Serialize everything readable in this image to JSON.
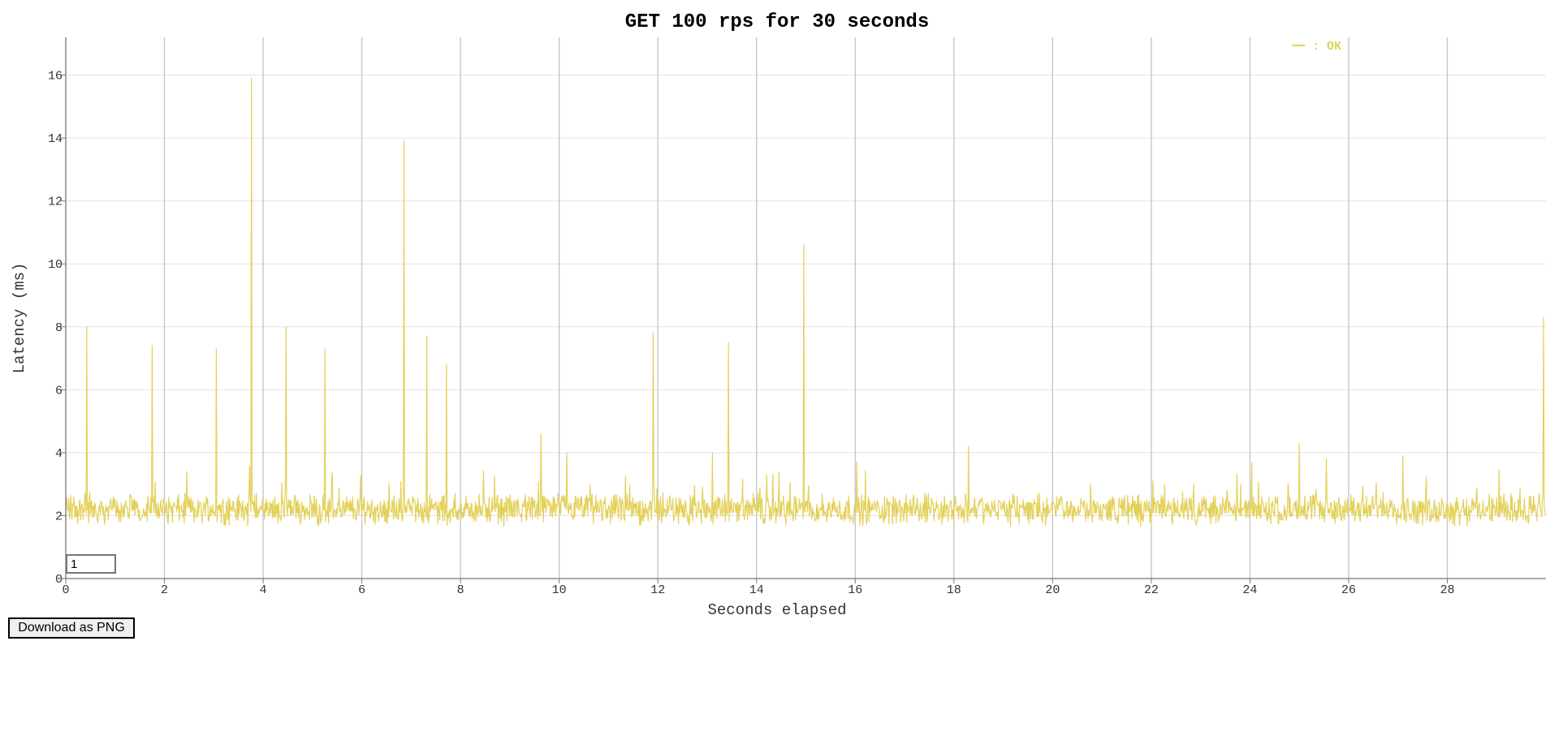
{
  "chart_data": {
    "type": "line",
    "title": "GET 100 rps for 30 seconds",
    "xlabel": "Seconds elapsed",
    "ylabel": "Latency (ms)",
    "xlim": [
      0,
      30
    ],
    "ylim": [
      0,
      17.2
    ],
    "x_ticks": [
      0,
      2,
      4,
      6,
      8,
      10,
      12,
      14,
      16,
      18,
      20,
      22,
      24,
      26,
      28
    ],
    "y_ticks": [
      0,
      2,
      4,
      6,
      8,
      10,
      12,
      14,
      16
    ],
    "grid": true,
    "legend_position": "top-right",
    "series": [
      {
        "name": ": OK",
        "color": "#e3d15a",
        "baseline_ms": 2.2,
        "spikes": [
          {
            "x": 0.43,
            "y": 8.0
          },
          {
            "x": 1.75,
            "y": 7.4
          },
          {
            "x": 3.05,
            "y": 7.3
          },
          {
            "x": 3.77,
            "y": 15.9
          },
          {
            "x": 4.47,
            "y": 8.0
          },
          {
            "x": 5.25,
            "y": 7.3
          },
          {
            "x": 6.85,
            "y": 13.9
          },
          {
            "x": 7.32,
            "y": 7.7
          },
          {
            "x": 7.72,
            "y": 6.8
          },
          {
            "x": 9.63,
            "y": 4.6
          },
          {
            "x": 10.15,
            "y": 4.0
          },
          {
            "x": 11.9,
            "y": 7.8
          },
          {
            "x": 13.1,
            "y": 4.0
          },
          {
            "x": 13.43,
            "y": 7.5
          },
          {
            "x": 14.95,
            "y": 10.6
          },
          {
            "x": 18.3,
            "y": 4.2
          },
          {
            "x": 25.0,
            "y": 4.3
          },
          {
            "x": 25.55,
            "y": 3.8
          },
          {
            "x": 27.1,
            "y": 3.9
          },
          {
            "x": 29.95,
            "y": 8.3
          }
        ]
      }
    ]
  },
  "controls": {
    "window_value": "1",
    "download_label": "Download as PNG"
  }
}
